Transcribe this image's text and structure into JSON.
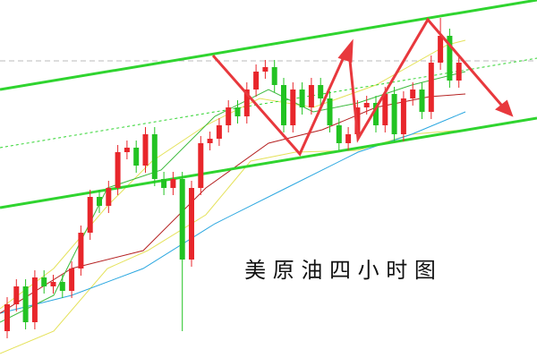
{
  "chart_data": {
    "type": "candlestick",
    "title": "美 原 油 四 小 时 图",
    "open": [
      30,
      60,
      80,
      40,
      90,
      80,
      85,
      75,
      100,
      140,
      180,
      170,
      190,
      230,
      235,
      215,
      250,
      200,
      190,
      200,
      110,
      190,
      240,
      245,
      260,
      280,
      270,
      300,
      320,
      325,
      305,
      260,
      300,
      280,
      305,
      290,
      260,
      240,
      250,
      280,
      285,
      260,
      295,
      250,
      290,
      300,
      275,
      330,
      360,
      310
    ],
    "high": [
      68,
      88,
      88,
      98,
      98,
      93,
      93,
      108,
      148,
      188,
      188,
      198,
      238,
      243,
      243,
      258,
      258,
      208,
      208,
      208,
      198,
      248,
      253,
      268,
      288,
      288,
      308,
      328,
      333,
      333,
      313,
      308,
      308,
      313,
      313,
      298,
      268,
      258,
      288,
      293,
      293,
      303,
      303,
      298,
      308,
      308,
      338,
      380,
      368,
      338
    ],
    "low": [
      22,
      52,
      32,
      32,
      72,
      72,
      67,
      67,
      92,
      132,
      162,
      162,
      182,
      222,
      207,
      207,
      192,
      182,
      182,
      30,
      102,
      182,
      232,
      237,
      252,
      262,
      262,
      292,
      312,
      297,
      252,
      252,
      272,
      272,
      282,
      252,
      232,
      232,
      242,
      272,
      252,
      252,
      242,
      242,
      282,
      267,
      267,
      322,
      302,
      302
    ],
    "close": [
      60,
      80,
      40,
      90,
      80,
      85,
      75,
      100,
      140,
      180,
      170,
      190,
      230,
      235,
      215,
      250,
      200,
      190,
      200,
      110,
      190,
      240,
      245,
      260,
      280,
      270,
      300,
      320,
      325,
      305,
      260,
      300,
      280,
      305,
      290,
      260,
      240,
      250,
      280,
      285,
      260,
      295,
      250,
      290,
      300,
      275,
      330,
      360,
      310,
      330
    ],
    "ylim": [
      0,
      400
    ],
    "up_color": "#e8262b",
    "down_color": "#22c322"
  }
}
